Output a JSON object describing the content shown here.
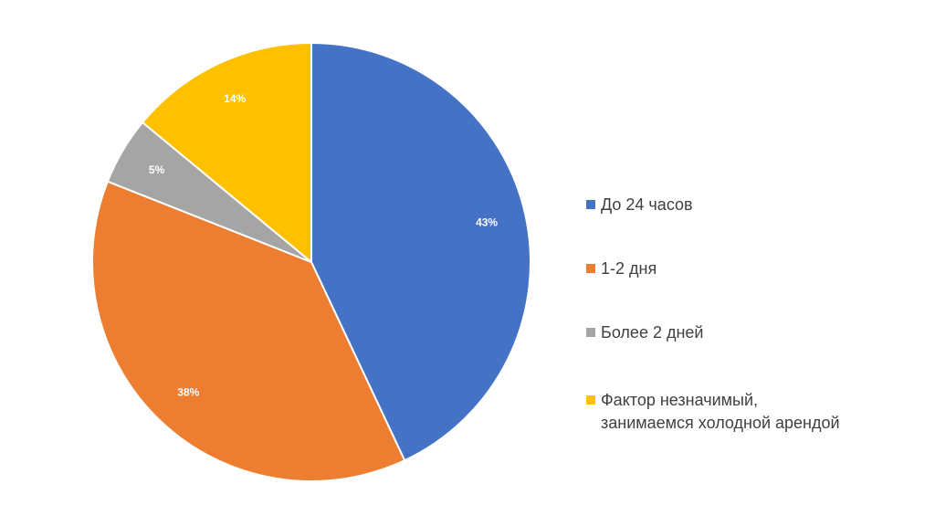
{
  "chart_data": {
    "type": "pie",
    "categories": [
      "До 24 часов",
      "1-2 дня",
      "Более 2 дней",
      "Фактор незначимый,\nзанимаемся холодной арендой"
    ],
    "values": [
      43,
      38,
      5,
      14
    ],
    "data_labels": [
      "43%",
      "38%",
      "5%",
      "14%"
    ],
    "colors": [
      "#4472C4",
      "#ED7D31",
      "#A5A5A5",
      "#FFC000"
    ],
    "start_angle": "12 o'clock",
    "direction": "clockwise",
    "legend_position": "right"
  }
}
